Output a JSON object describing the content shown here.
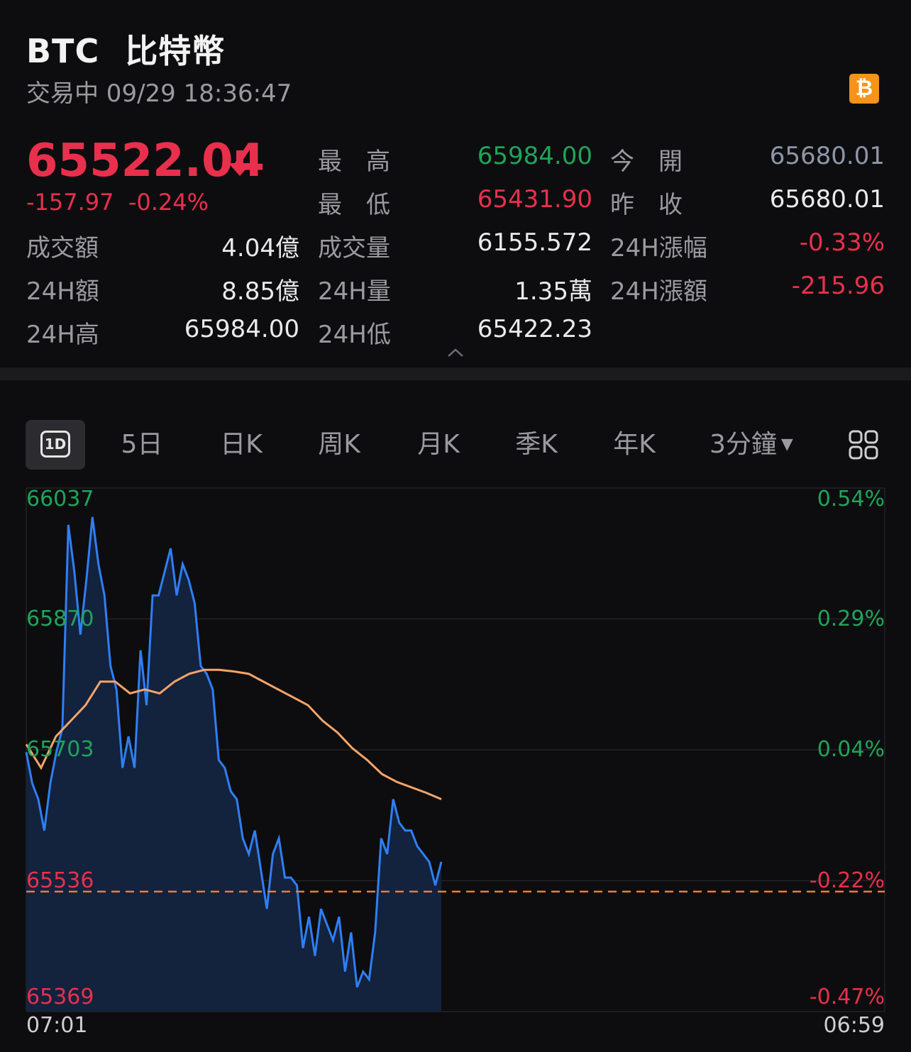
{
  "header": {
    "symbol": "BTC",
    "name": "比特幣",
    "status": "交易中 09/29 18:36:47",
    "coin_icon": "bitcoin-icon",
    "price": "65522.04",
    "change": "-157.97  -0.24%"
  },
  "stats": {
    "high_label": "最　高",
    "high": "65984.00",
    "open_label": "今　開",
    "open": "65680.01",
    "low_label": "最　低",
    "low": "65431.90",
    "prev_close_label": "昨　收",
    "prev_close": "65680.01",
    "turnover_label": "成交額",
    "turnover": "4.04億",
    "volume_label": "成交量",
    "volume": "6155.572",
    "chg24_pct_label": "24H漲幅",
    "chg24_pct": "-0.33%",
    "amt24_label": "24H額",
    "amt24": "8.85億",
    "vol24_label": "24H量",
    "vol24": "1.35萬",
    "chg24_amt_label": "24H漲額",
    "chg24_amt": "-215.96",
    "high24_label": "24H高",
    "high24": "65984.00",
    "low24_label": "24H低",
    "low24": "65422.23"
  },
  "tabs": {
    "t1d": "1D",
    "t5d": "5日",
    "day": "日K",
    "week": "周K",
    "month": "月K",
    "quarter": "季K",
    "year": "年K",
    "interval": "3分鐘"
  },
  "colors": {
    "up": "#1fa45a",
    "down": "#e8304d",
    "line": "#2f7ff5",
    "avg": "#f5a46a",
    "accent": "#f7931a"
  },
  "chart_data": {
    "type": "line",
    "y_ticks_left": [
      "66037",
      "65870",
      "65703",
      "65536",
      "65369"
    ],
    "y_ticks_right": [
      "0.54%",
      "0.29%",
      "0.04%",
      "-0.22%",
      "-0.47%"
    ],
    "x_start": "07:01",
    "x_end": "06:59",
    "ylim": [
      65369,
      66037
    ],
    "reference_price": 65522.04,
    "series": [
      {
        "values": [
          65700,
          65660,
          65640,
          65600,
          65660,
          65700,
          65730,
          65990,
          65930,
          65850,
          65920,
          66000,
          65940,
          65900,
          65810,
          65780,
          65680,
          65720,
          65680,
          65830,
          65760,
          65900,
          65900,
          65930,
          65960,
          65900,
          65940,
          65920,
          65890,
          65810,
          65800,
          65780,
          65690,
          65680,
          65650,
          65640,
          65590,
          65570,
          65600,
          65550,
          65500,
          65570,
          65590,
          65540,
          65540,
          65530,
          65450,
          65490,
          65440,
          65500,
          65480,
          65460,
          65490,
          65420,
          65470,
          65400,
          65420,
          65410,
          65470,
          65590,
          65570,
          65640,
          65610,
          65600,
          65600,
          65580,
          65570,
          65560,
          65530,
          65560
        ]
      },
      {
        "values": [
          65710,
          65680,
          65720,
          65740,
          65760,
          65790,
          65790,
          65775,
          65780,
          65775,
          65790,
          65800,
          65805,
          65805,
          65803,
          65800,
          65790,
          65780,
          65770,
          65760,
          65740,
          65725,
          65705,
          65690,
          65672,
          65662,
          65655,
          65648,
          65640
        ]
      }
    ]
  }
}
